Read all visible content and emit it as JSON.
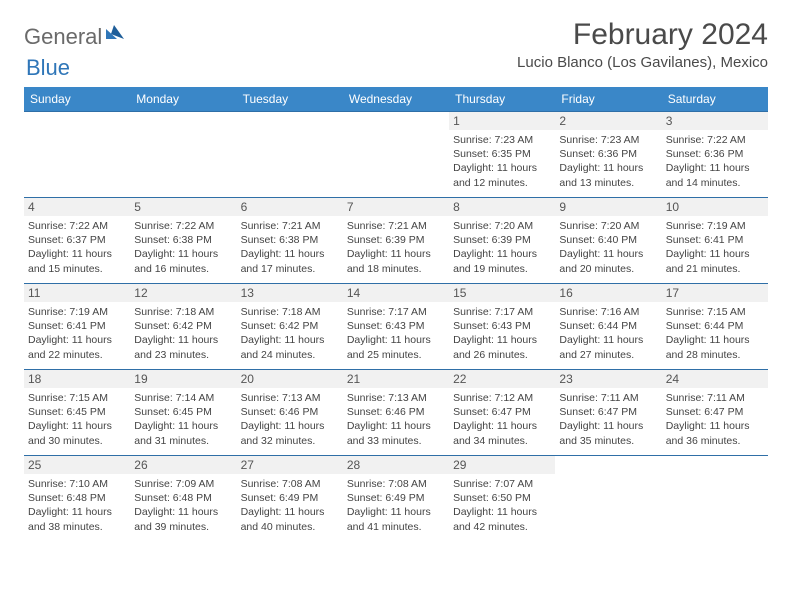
{
  "brand": {
    "part1": "General",
    "part2": "Blue"
  },
  "title": "February 2024",
  "location": "Lucio Blanco (Los Gavilanes), Mexico",
  "theme": {
    "header_bg": "#3a87c8",
    "header_text": "#ffffff",
    "rule_color": "#2f6fa7",
    "daynum_bg": "#f1f1f1",
    "body_text": "#444444",
    "title_color": "#4a4a4a",
    "logo_gray": "#6a6a6a",
    "logo_blue": "#2f76b8"
  },
  "day_headers": [
    "Sunday",
    "Monday",
    "Tuesday",
    "Wednesday",
    "Thursday",
    "Friday",
    "Saturday"
  ],
  "weeks": [
    [
      null,
      null,
      null,
      null,
      {
        "n": "1",
        "sunrise": "7:23 AM",
        "sunset": "6:35 PM",
        "daylight": "11 hours and 12 minutes."
      },
      {
        "n": "2",
        "sunrise": "7:23 AM",
        "sunset": "6:36 PM",
        "daylight": "11 hours and 13 minutes."
      },
      {
        "n": "3",
        "sunrise": "7:22 AM",
        "sunset": "6:36 PM",
        "daylight": "11 hours and 14 minutes."
      }
    ],
    [
      {
        "n": "4",
        "sunrise": "7:22 AM",
        "sunset": "6:37 PM",
        "daylight": "11 hours and 15 minutes."
      },
      {
        "n": "5",
        "sunrise": "7:22 AM",
        "sunset": "6:38 PM",
        "daylight": "11 hours and 16 minutes."
      },
      {
        "n": "6",
        "sunrise": "7:21 AM",
        "sunset": "6:38 PM",
        "daylight": "11 hours and 17 minutes."
      },
      {
        "n": "7",
        "sunrise": "7:21 AM",
        "sunset": "6:39 PM",
        "daylight": "11 hours and 18 minutes."
      },
      {
        "n": "8",
        "sunrise": "7:20 AM",
        "sunset": "6:39 PM",
        "daylight": "11 hours and 19 minutes."
      },
      {
        "n": "9",
        "sunrise": "7:20 AM",
        "sunset": "6:40 PM",
        "daylight": "11 hours and 20 minutes."
      },
      {
        "n": "10",
        "sunrise": "7:19 AM",
        "sunset": "6:41 PM",
        "daylight": "11 hours and 21 minutes."
      }
    ],
    [
      {
        "n": "11",
        "sunrise": "7:19 AM",
        "sunset": "6:41 PM",
        "daylight": "11 hours and 22 minutes."
      },
      {
        "n": "12",
        "sunrise": "7:18 AM",
        "sunset": "6:42 PM",
        "daylight": "11 hours and 23 minutes."
      },
      {
        "n": "13",
        "sunrise": "7:18 AM",
        "sunset": "6:42 PM",
        "daylight": "11 hours and 24 minutes."
      },
      {
        "n": "14",
        "sunrise": "7:17 AM",
        "sunset": "6:43 PM",
        "daylight": "11 hours and 25 minutes."
      },
      {
        "n": "15",
        "sunrise": "7:17 AM",
        "sunset": "6:43 PM",
        "daylight": "11 hours and 26 minutes."
      },
      {
        "n": "16",
        "sunrise": "7:16 AM",
        "sunset": "6:44 PM",
        "daylight": "11 hours and 27 minutes."
      },
      {
        "n": "17",
        "sunrise": "7:15 AM",
        "sunset": "6:44 PM",
        "daylight": "11 hours and 28 minutes."
      }
    ],
    [
      {
        "n": "18",
        "sunrise": "7:15 AM",
        "sunset": "6:45 PM",
        "daylight": "11 hours and 30 minutes."
      },
      {
        "n": "19",
        "sunrise": "7:14 AM",
        "sunset": "6:45 PM",
        "daylight": "11 hours and 31 minutes."
      },
      {
        "n": "20",
        "sunrise": "7:13 AM",
        "sunset": "6:46 PM",
        "daylight": "11 hours and 32 minutes."
      },
      {
        "n": "21",
        "sunrise": "7:13 AM",
        "sunset": "6:46 PM",
        "daylight": "11 hours and 33 minutes."
      },
      {
        "n": "22",
        "sunrise": "7:12 AM",
        "sunset": "6:47 PM",
        "daylight": "11 hours and 34 minutes."
      },
      {
        "n": "23",
        "sunrise": "7:11 AM",
        "sunset": "6:47 PM",
        "daylight": "11 hours and 35 minutes."
      },
      {
        "n": "24",
        "sunrise": "7:11 AM",
        "sunset": "6:47 PM",
        "daylight": "11 hours and 36 minutes."
      }
    ],
    [
      {
        "n": "25",
        "sunrise": "7:10 AM",
        "sunset": "6:48 PM",
        "daylight": "11 hours and 38 minutes."
      },
      {
        "n": "26",
        "sunrise": "7:09 AM",
        "sunset": "6:48 PM",
        "daylight": "11 hours and 39 minutes."
      },
      {
        "n": "27",
        "sunrise": "7:08 AM",
        "sunset": "6:49 PM",
        "daylight": "11 hours and 40 minutes."
      },
      {
        "n": "28",
        "sunrise": "7:08 AM",
        "sunset": "6:49 PM",
        "daylight": "11 hours and 41 minutes."
      },
      {
        "n": "29",
        "sunrise": "7:07 AM",
        "sunset": "6:50 PM",
        "daylight": "11 hours and 42 minutes."
      },
      null,
      null
    ]
  ],
  "labels": {
    "sunrise": "Sunrise:",
    "sunset": "Sunset:",
    "daylight": "Daylight:"
  }
}
